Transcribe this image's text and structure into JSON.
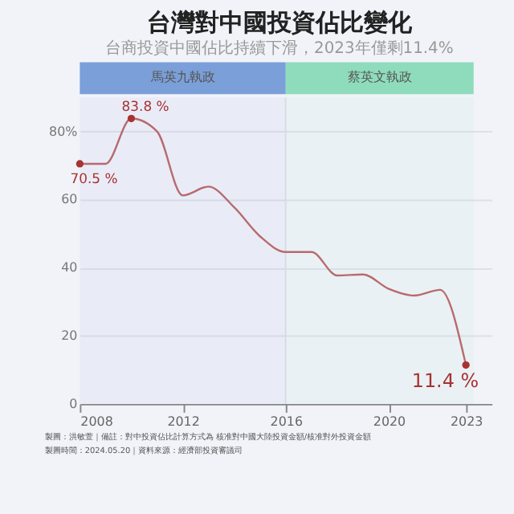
{
  "chart_data": {
    "type": "line",
    "title": "台灣對中國投資佔比變化",
    "subtitle": "台商投資中國佔比持續下滑，2023年僅剩11.4%",
    "x": [
      2008,
      2009,
      2010,
      2011,
      2012,
      2013,
      2014,
      2015,
      2016,
      2017,
      2018,
      2019,
      2020,
      2021,
      2022,
      2023
    ],
    "series": [
      {
        "type": "line",
        "color": "#b86a6e",
        "marker": "none",
        "values": [
          70.5,
          70.5,
          83.8,
          80,
          61.2,
          63.8,
          57.7,
          49.2,
          44.6,
          44.6,
          37.7,
          38,
          33.8,
          31.8,
          33.5,
          11.4
        ]
      },
      {
        "type": "scatter",
        "color": "#a83232",
        "marker": "circle",
        "x": [
          2008,
          2010,
          2023
        ],
        "values": [
          70.5,
          83.8,
          11.4
        ]
      }
    ],
    "xlim": [
      2008,
      2024
    ],
    "xticks": [
      2008,
      2012,
      2016,
      2020,
      2023
    ],
    "ylim": [
      0,
      90
    ],
    "yticks": [
      0,
      20,
      40,
      60,
      {
        "value": 80,
        "label": "80%"
      }
    ],
    "grid": "y",
    "ref_lines": [
      {
        "axis": "x",
        "value": 2016,
        "color": "#dde0ea"
      }
    ],
    "bands": [
      {
        "axis": "x",
        "from": 2008,
        "to": 2016,
        "label": "馬英九執政",
        "color": "#7b9fd8"
      },
      {
        "axis": "x",
        "from": 2016,
        "to": 2023.3,
        "label": "蔡英文執政",
        "color": "#8fdcbc"
      }
    ],
    "annotations": [
      {
        "text": "70.5 %",
        "x": 2008,
        "y": 70.5
      },
      {
        "text": "83.8 %",
        "x": 2010,
        "y": 83.8
      },
      {
        "text": "11.4 %",
        "x": 2023,
        "y": 11.4
      },
      "製圖：洪敏萱｜備註：對中投資佔比計算方式為 核准對中國大陸投資金額/核准對外投資金額",
      "製圖時間：2024.05.20｜資料來源：經濟部投資審議司"
    ]
  }
}
